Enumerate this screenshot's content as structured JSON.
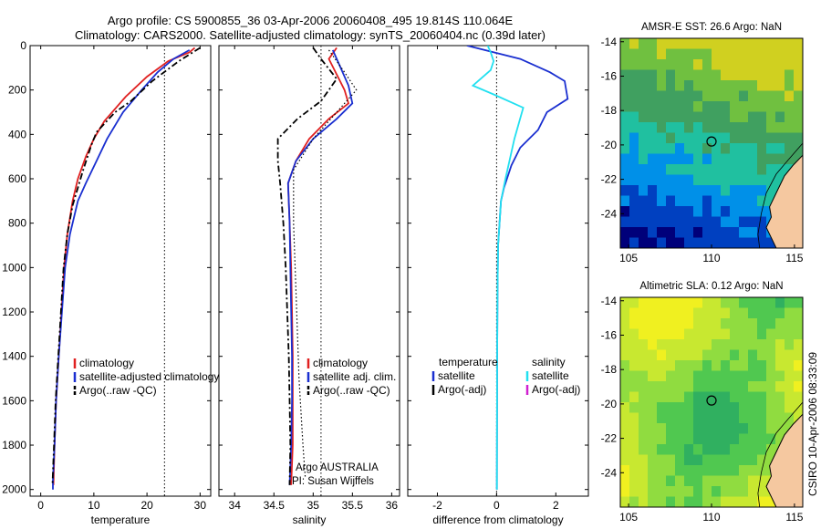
{
  "header": {
    "title_line1": "Argo profile: CS 5900855_36 03-Apr-2006 20060408_495 19.814S 110.064E",
    "title_line2": "Climatology: CARS2000. Satellite-adjusted climatology: synTS_20060404.nc (0.39d later)"
  },
  "side_label": "CSIRO 10-Apr-2006 08:33:09",
  "colors": {
    "climatology": "#e02020",
    "satellite": "#1a2fd0",
    "argo": "#000000",
    "salinity_satellite": "#22e0f0",
    "salinity_argo": "#d020d0"
  },
  "chart_data": [
    {
      "type": "line",
      "id": "temperature",
      "xlabel": "temperature",
      "xlim": [
        -2,
        32
      ],
      "ylim": [
        2030,
        0
      ],
      "y_reversed": true,
      "xticks": [
        0,
        10,
        20,
        30
      ],
      "yticks": [
        0,
        200,
        400,
        600,
        800,
        1000,
        1200,
        1400,
        1600,
        1800,
        2000
      ],
      "reference_x": 23.3,
      "legend": [
        "climatology",
        "satellite-adjusted climatology",
        "Argo(..raw -QC)"
      ],
      "series": [
        {
          "name": "climatology",
          "style": "solid",
          "color_key": "climatology",
          "points": [
            [
              29,
              10
            ],
            [
              28,
              30
            ],
            [
              26,
              50
            ],
            [
              24,
              70
            ],
            [
              20,
              140
            ],
            [
              16,
              230
            ],
            [
              12,
              340
            ],
            [
              10,
              420
            ],
            [
              8.5,
              500
            ],
            [
              7,
              600
            ],
            [
              6,
              700
            ],
            [
              5,
              850
            ],
            [
              4.4,
              1000
            ],
            [
              3.9,
              1200
            ],
            [
              3.4,
              1400
            ],
            [
              2.9,
              1600
            ],
            [
              2.6,
              1800
            ],
            [
              2.4,
              1980
            ]
          ]
        },
        {
          "name": "satellite-adjusted climatology",
          "style": "solid",
          "color_key": "satellite",
          "points": [
            [
              28,
              20
            ],
            [
              25,
              60
            ],
            [
              22,
              120
            ],
            [
              19,
              200
            ],
            [
              15.5,
              300
            ],
            [
              12.5,
              420
            ],
            [
              10.5,
              520
            ],
            [
              8.5,
              620
            ],
            [
              7,
              700
            ],
            [
              5.5,
              850
            ],
            [
              4.6,
              1000
            ],
            [
              4,
              1200
            ],
            [
              3.4,
              1400
            ],
            [
              2.9,
              1600
            ],
            [
              2.6,
              1800
            ],
            [
              2.3,
              1960
            ],
            [
              2.3,
              2000
            ]
          ]
        },
        {
          "name": "Argo(..raw -QC)",
          "style": "dashdot",
          "color_key": "argo",
          "points": [
            [
              30,
              10
            ],
            [
              28,
              40
            ],
            [
              26,
              70
            ],
            [
              21,
              160
            ],
            [
              17,
              250
            ],
            [
              14,
              300
            ],
            [
              10.5,
              390
            ],
            [
              9.5,
              450
            ],
            [
              8,
              560
            ],
            [
              7,
              640
            ],
            [
              6,
              720
            ],
            [
              5,
              850
            ],
            [
              4.3,
              1000
            ],
            [
              3.8,
              1200
            ],
            [
              3.3,
              1400
            ],
            [
              2.8,
              1600
            ],
            [
              2.5,
              1800
            ],
            [
              2.2,
              1980
            ]
          ]
        }
      ]
    },
    {
      "type": "line",
      "id": "salinity",
      "xlabel": "salinity",
      "xlim": [
        33.8,
        36.1
      ],
      "ylim": [
        2030,
        0
      ],
      "y_reversed": true,
      "xticks": [
        34,
        34.5,
        35,
        35.5,
        36
      ],
      "reference_x": 35.1,
      "legend": [
        "climatology",
        "satellite adj. clim.",
        "Argo(..raw -QC)"
      ],
      "annotations": [
        "Argo AUSTRALIA",
        "PI: Susan Wijffels"
      ],
      "series": [
        {
          "name": "climatology",
          "style": "solid",
          "color_key": "climatology",
          "points": [
            [
              35.3,
              10
            ],
            [
              35.2,
              60
            ],
            [
              35.3,
              130
            ],
            [
              35.4,
              200
            ],
            [
              35.45,
              260
            ],
            [
              35.2,
              330
            ],
            [
              34.95,
              420
            ],
            [
              34.78,
              520
            ],
            [
              34.68,
              620
            ],
            [
              34.7,
              800
            ],
            [
              34.72,
              1000
            ],
            [
              34.73,
              1200
            ],
            [
              34.74,
              1400
            ],
            [
              34.74,
              1600
            ],
            [
              34.74,
              1800
            ],
            [
              34.72,
              1980
            ]
          ]
        },
        {
          "name": "satellite adj. clim.",
          "style": "solid",
          "color_key": "satellite",
          "points": [
            [
              35.25,
              20
            ],
            [
              35.35,
              100
            ],
            [
              35.45,
              180
            ],
            [
              35.5,
              260
            ],
            [
              35.3,
              330
            ],
            [
              35,
              420
            ],
            [
              34.78,
              520
            ],
            [
              34.68,
              620
            ],
            [
              34.7,
              800
            ],
            [
              34.71,
              1000
            ],
            [
              34.72,
              1200
            ],
            [
              34.73,
              1400
            ],
            [
              34.73,
              1600
            ],
            [
              34.72,
              1800
            ],
            [
              34.7,
              1980
            ]
          ]
        },
        {
          "name": "Argo(..raw -QC)",
          "style": "dashdot",
          "color_key": "argo",
          "points": [
            [
              35,
              10
            ],
            [
              35.1,
              60
            ],
            [
              35.3,
              150
            ],
            [
              35.1,
              250
            ],
            [
              34.8,
              330
            ],
            [
              34.55,
              420
            ],
            [
              34.55,
              520
            ],
            [
              34.58,
              620
            ],
            [
              34.62,
              800
            ],
            [
              34.65,
              1000
            ],
            [
              34.67,
              1200
            ],
            [
              34.69,
              1400
            ],
            [
              34.7,
              1600
            ],
            [
              34.71,
              1800
            ],
            [
              34.7,
              1980
            ]
          ]
        },
        {
          "name": "",
          "style": "dotted",
          "color_key": "argo",
          "points": [
            [
              35.2,
              20
            ],
            [
              35.4,
              120
            ],
            [
              35.55,
              200
            ],
            [
              35.3,
              300
            ],
            [
              35,
              420
            ],
            [
              34.75,
              560
            ],
            [
              34.75,
              800
            ],
            [
              34.78,
              1100
            ],
            [
              34.82,
              1500
            ],
            [
              34.87,
              1800
            ],
            [
              34.9,
              1950
            ]
          ]
        }
      ]
    },
    {
      "type": "line",
      "id": "difference",
      "xlabel": "difference from climatology",
      "xlim": [
        -3,
        3.1
      ],
      "ylim": [
        2030,
        0
      ],
      "y_reversed": true,
      "xticks": [
        -2,
        0,
        2
      ],
      "reference_x": 0,
      "legend_left_title": "temperature",
      "legend_left": [
        "satellite",
        "Argo(-adj)"
      ],
      "legend_right_title": "salinity",
      "legend_right": [
        "satellite",
        "Argo(-adj)"
      ],
      "series": [
        {
          "name": "temperature satellite",
          "style": "solid",
          "color_key": "satellite",
          "points": [
            [
              -1,
              0
            ],
            [
              -0.4,
              20
            ],
            [
              0.8,
              60
            ],
            [
              1.8,
              120
            ],
            [
              2.3,
              160
            ],
            [
              2.4,
              240
            ],
            [
              1.7,
              300
            ],
            [
              1.4,
              380
            ],
            [
              0.8,
              460
            ],
            [
              0.5,
              540
            ],
            [
              0.25,
              640
            ],
            [
              0.15,
              700
            ],
            [
              0.1,
              800
            ],
            [
              0.05,
              900
            ],
            [
              0.03,
              1100
            ],
            [
              0.02,
              1400
            ],
            [
              0.01,
              2000
            ]
          ]
        },
        {
          "name": "salinity satellite",
          "style": "solid",
          "color_key": "salinity_satellite",
          "points": [
            [
              -0.3,
              0
            ],
            [
              -0.2,
              30
            ],
            [
              -0.1,
              70
            ],
            [
              -0.2,
              110
            ],
            [
              -0.8,
              180
            ],
            [
              -0.1,
              220
            ],
            [
              0.9,
              280
            ],
            [
              0.6,
              420
            ],
            [
              0.3,
              600
            ],
            [
              0.15,
              700
            ],
            [
              0.1,
              800
            ],
            [
              0.05,
              900
            ],
            [
              0.03,
              1100
            ],
            [
              0.02,
              1400
            ],
            [
              0.01,
              2000
            ]
          ]
        }
      ]
    },
    {
      "type": "heatmap",
      "id": "sst_map",
      "title": "AMSR-E SST: 26.6 Argo: NaN",
      "xlim": [
        104.5,
        115.5
      ],
      "ylim": [
        -26,
        -13.8
      ],
      "xticks": [
        105,
        110,
        115
      ],
      "yticks": [
        -14,
        -16,
        -18,
        -20,
        -22,
        -24
      ],
      "marker": [
        110,
        -19.8
      ],
      "palette": [
        "#00007a",
        "#0040c0",
        "#0090e8",
        "#20c0a0",
        "#40a060",
        "#70c040",
        "#d0d020"
      ]
    },
    {
      "type": "heatmap",
      "id": "sla_map",
      "title": "Altimetric SLA: 0.12 Argo: NaN",
      "xlim": [
        104.5,
        115.5
      ],
      "ylim": [
        -26,
        -13.8
      ],
      "xticks": [
        105,
        110,
        115
      ],
      "yticks": [
        -14,
        -16,
        -18,
        -20,
        -22,
        -24
      ],
      "marker": [
        110,
        -19.8
      ],
      "palette": [
        "#30b060",
        "#50c850",
        "#90dc40",
        "#c8e830",
        "#f0f020"
      ]
    }
  ]
}
